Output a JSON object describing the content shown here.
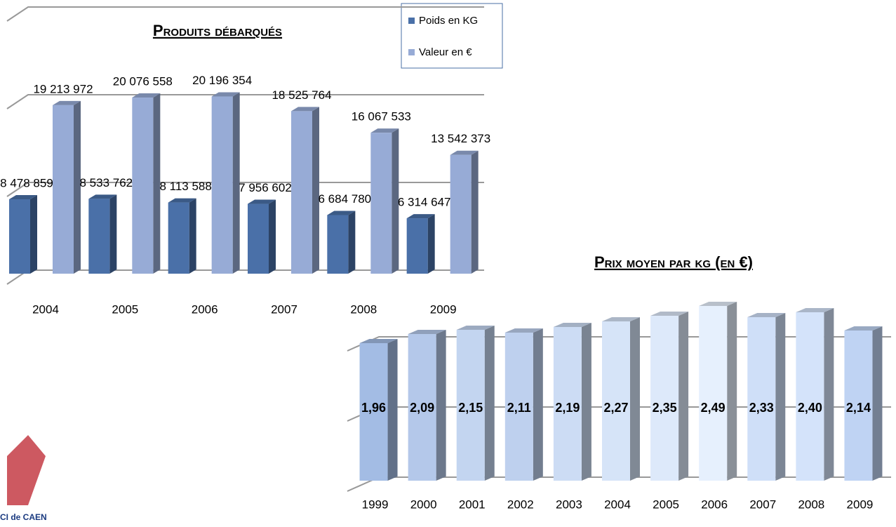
{
  "chart_data": [
    {
      "type": "bar3d",
      "title": "Produits débarqués",
      "categories": [
        "2004",
        "2005",
        "2006",
        "2007",
        "2008",
        "2009"
      ],
      "series": [
        {
          "name": "Poids en KG",
          "color": "#4a70a8",
          "values": [
            8478859,
            8533762,
            8113588,
            7956602,
            6684780,
            6314647
          ],
          "value_labels": [
            "8 478 859",
            "8 533 762",
            "8 113 588",
            "7 956 602",
            "6 684 780",
            "6 314 647"
          ]
        },
        {
          "name": "Valeur en €",
          "color": "#97abd6",
          "values": [
            19213972,
            20076558,
            20196354,
            18525764,
            16067533,
            13542373
          ],
          "value_labels": [
            "19 213 972",
            "20 076 558",
            "20 196 354",
            "18 525 764",
            "16 067 533",
            "13 542 373"
          ]
        }
      ],
      "ylim": [
        0,
        30000000
      ],
      "yticks": [
        0,
        10000000,
        20000000,
        30000000
      ],
      "grid": true,
      "legend": "top-right"
    },
    {
      "type": "bar3d-single",
      "title": "Prix moyen par kg (en €)",
      "categories": [
        "1999",
        "2000",
        "2001",
        "2002",
        "2003",
        "2004",
        "2005",
        "2006",
        "2007",
        "2008",
        "2009"
      ],
      "values": [
        1.96,
        2.09,
        2.15,
        2.11,
        2.19,
        2.27,
        2.35,
        2.49,
        2.33,
        2.4,
        2.14
      ],
      "value_labels": [
        "1,96",
        "2,09",
        "2,15",
        "2,11",
        "2,19",
        "2,27",
        "2,35",
        "2,49",
        "2,33",
        "2,40",
        "2,14"
      ],
      "colors": [
        "#a3bce4",
        "#b4c8ea",
        "#c3d5f0",
        "#bed0ee",
        "#ccdcf4",
        "#d6e4f8",
        "#dde9fa",
        "#e6f0fd",
        "#cfdff8",
        "#d4e3fa",
        "#bfd3f3"
      ],
      "ylim": [
        0,
        2.5
      ],
      "yticks": [
        0,
        1,
        2
      ],
      "grid": true
    }
  ],
  "logo_text": "CI de CAEN"
}
